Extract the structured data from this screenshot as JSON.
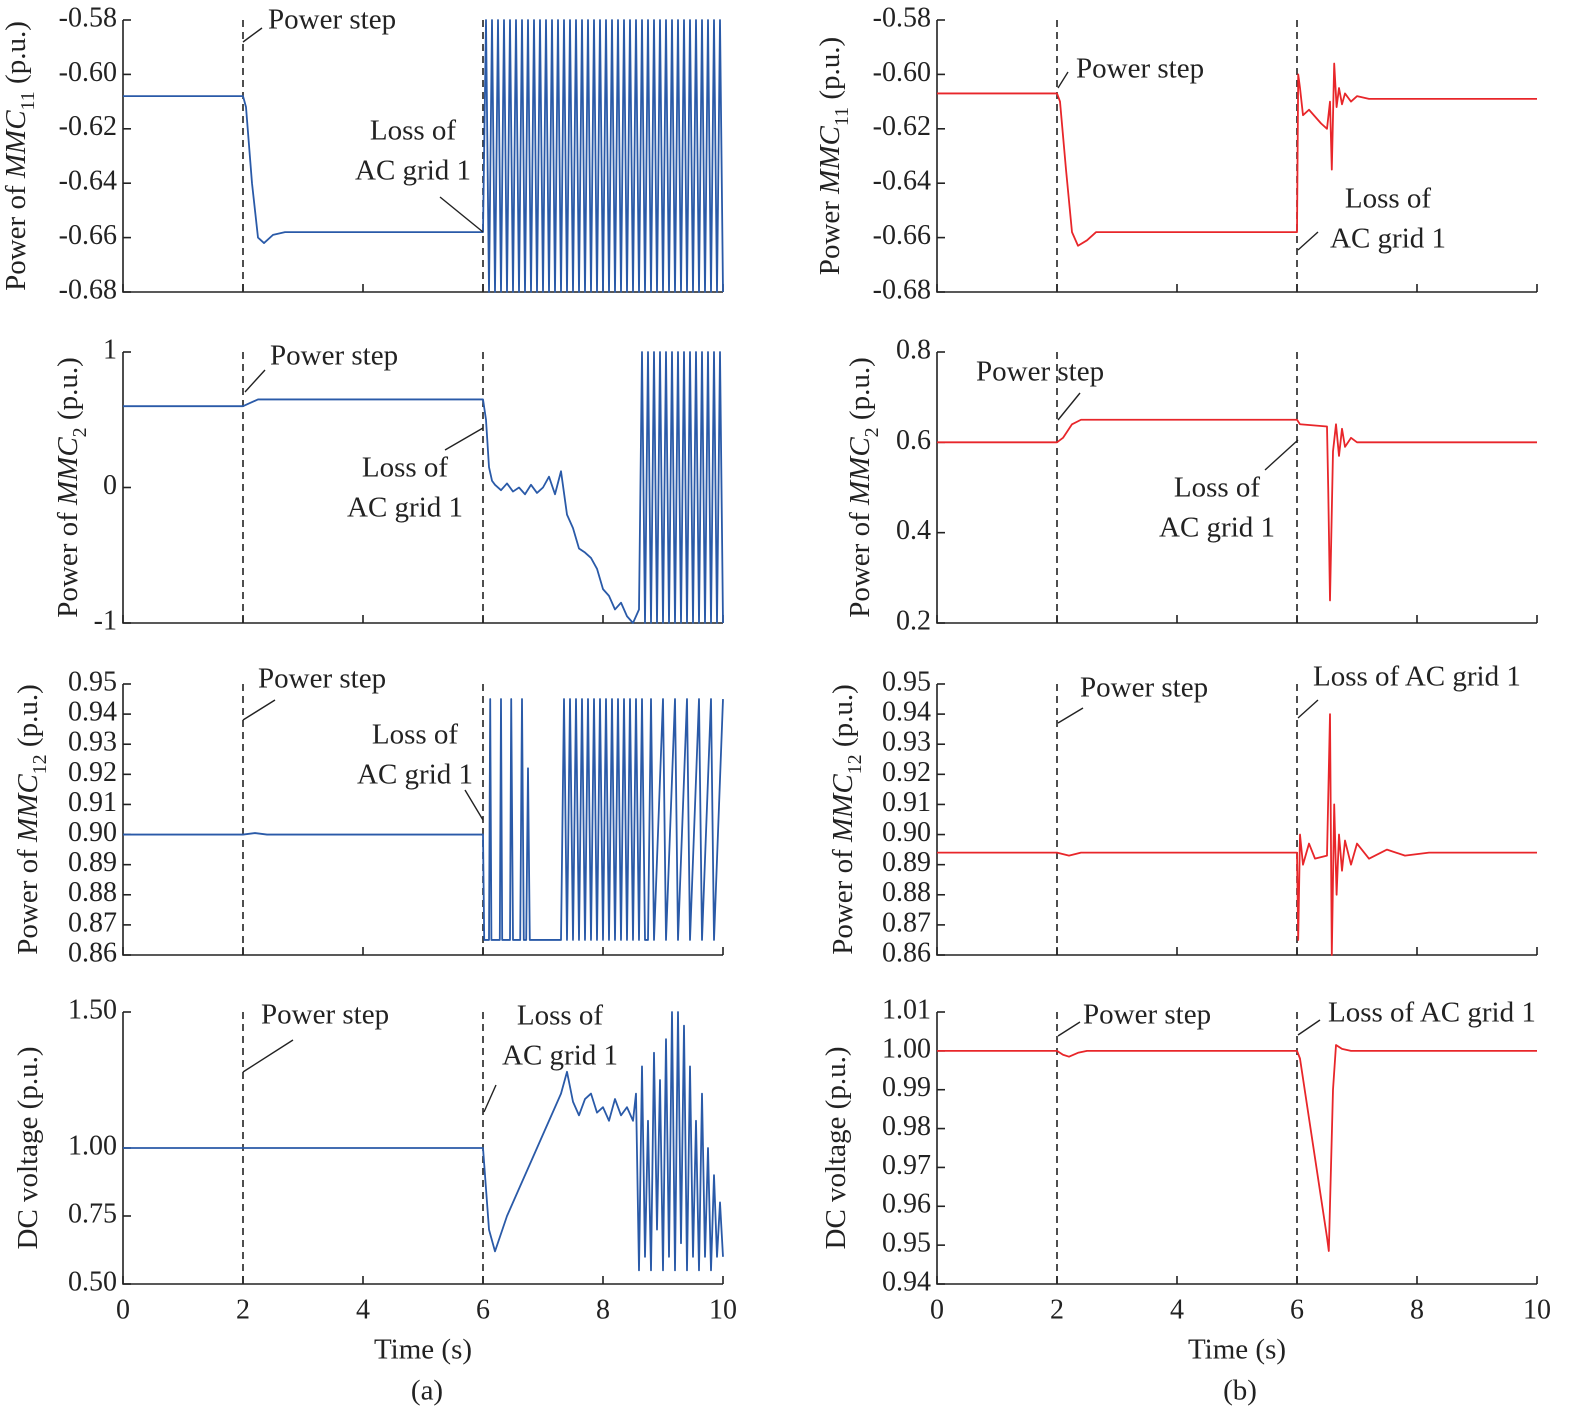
{
  "chart_data": [
    {
      "type": "line",
      "ylabel": [
        "Power of ",
        "MMC",
        "11",
        " (p.u.)"
      ],
      "color": "#2a5aa8",
      "xlim": [
        0,
        10
      ],
      "xticks": [
        0,
        2,
        4,
        6,
        8,
        10
      ],
      "xtick_labels": false,
      "ylim": [
        -0.68,
        -0.58
      ],
      "yticks": [
        -0.68,
        -0.66,
        -0.64,
        -0.62,
        {
          "value": -0.6,
          "label": "-0.60"
        },
        -0.58
      ],
      "vlines": [
        2,
        6
      ],
      "annotations": [
        [
          "Power step"
        ],
        [
          "Loss of",
          "AC grid 1"
        ]
      ],
      "x": [
        0,
        2,
        2.05,
        2.15,
        2.25,
        2.35,
        2.5,
        2.7,
        3,
        6,
        6.05,
        6.1,
        6.15,
        6.2,
        6.25,
        6.3,
        6.35,
        6.4,
        6.45,
        6.5,
        6.55,
        6.6,
        6.65,
        6.7,
        6.75,
        6.8,
        6.85,
        6.9,
        6.95,
        7,
        7.05,
        7.1,
        7.15,
        7.2,
        7.25,
        7.3,
        7.35,
        7.4,
        7.45,
        7.5,
        7.55,
        7.6,
        7.65,
        7.7,
        7.75,
        7.8,
        7.85,
        7.9,
        7.95,
        8,
        8.05,
        8.1,
        8.15,
        8.2,
        8.25,
        8.3,
        8.35,
        8.4,
        8.45,
        8.5,
        8.55,
        8.6,
        8.65,
        8.7,
        8.75,
        8.8,
        8.85,
        8.9,
        8.95,
        9,
        9.05,
        9.1,
        9.15,
        9.2,
        9.25,
        9.3,
        9.35,
        9.4,
        9.45,
        9.5,
        9.55,
        9.6,
        9.65,
        9.7,
        9.75,
        9.8,
        9.85,
        9.9,
        9.95,
        10
      ],
      "values": [
        -0.608,
        -0.608,
        -0.612,
        -0.64,
        -0.66,
        -0.662,
        -0.659,
        -0.658,
        -0.658,
        -0.658,
        -0.58,
        -0.68,
        -0.58,
        -0.68,
        -0.58,
        -0.68,
        -0.58,
        -0.68,
        -0.58,
        -0.68,
        -0.58,
        -0.68,
        -0.58,
        -0.68,
        -0.58,
        -0.68,
        -0.58,
        -0.68,
        -0.58,
        -0.68,
        -0.58,
        -0.68,
        -0.58,
        -0.68,
        -0.58,
        -0.68,
        -0.58,
        -0.68,
        -0.58,
        -0.68,
        -0.58,
        -0.68,
        -0.58,
        -0.68,
        -0.58,
        -0.68,
        -0.58,
        -0.68,
        -0.58,
        -0.68,
        -0.58,
        -0.68,
        -0.58,
        -0.68,
        -0.58,
        -0.68,
        -0.58,
        -0.68,
        -0.58,
        -0.68,
        -0.58,
        -0.68,
        -0.58,
        -0.68,
        -0.58,
        -0.68,
        -0.58,
        -0.68,
        -0.58,
        -0.68,
        -0.58,
        -0.68,
        -0.58,
        -0.68,
        -0.58,
        -0.68,
        -0.58,
        -0.68,
        -0.58,
        -0.68,
        -0.58,
        -0.68,
        -0.58,
        -0.68,
        -0.58,
        -0.68,
        -0.58,
        -0.68,
        -0.58,
        -0.68
      ]
    },
    {
      "type": "line",
      "ylabel": [
        "Power of ",
        "MMC",
        "2",
        " (p.u.)"
      ],
      "color": "#2a5aa8",
      "xlim": [
        0,
        10
      ],
      "xticks": [
        0,
        2,
        4,
        6,
        8,
        10
      ],
      "xtick_labels": false,
      "ylim": [
        -1,
        1
      ],
      "yticks": [
        -1,
        0,
        1
      ],
      "vlines": [
        2,
        6
      ],
      "annotations": [
        [
          "Power step"
        ],
        [
          "Loss of",
          "AC grid 1"
        ]
      ],
      "x": [
        0,
        2,
        2.1,
        2.25,
        2.4,
        6,
        6.05,
        6.1,
        6.15,
        6.2,
        6.3,
        6.4,
        6.5,
        6.6,
        6.7,
        6.8,
        6.9,
        7,
        7.1,
        7.2,
        7.3,
        7.4,
        7.5,
        7.6,
        7.7,
        7.8,
        7.9,
        8,
        8.1,
        8.2,
        8.3,
        8.4,
        8.5,
        8.6,
        8.65,
        8.7,
        8.75,
        8.8,
        8.85,
        8.9,
        8.95,
        9,
        9.05,
        9.1,
        9.15,
        9.2,
        9.25,
        9.3,
        9.35,
        9.4,
        9.45,
        9.5,
        9.55,
        9.6,
        9.65,
        9.7,
        9.75,
        9.8,
        9.85,
        9.9,
        9.95,
        10
      ],
      "values": [
        0.6,
        0.6,
        0.62,
        0.65,
        0.65,
        0.65,
        0.5,
        0.15,
        0.05,
        0.02,
        -0.02,
        0.03,
        -0.03,
        0,
        -0.05,
        0.02,
        -0.04,
        0,
        0.08,
        -0.05,
        0.12,
        -0.2,
        -0.3,
        -0.45,
        -0.48,
        -0.52,
        -0.6,
        -0.75,
        -0.8,
        -0.9,
        -0.85,
        -0.95,
        -1,
        -0.9,
        1,
        -1,
        1,
        -1,
        1,
        -1,
        1,
        -1,
        1,
        -1,
        1,
        -1,
        1,
        -1,
        1,
        -1,
        1,
        -1,
        1,
        -1,
        1,
        -1,
        1,
        -1,
        1,
        -1,
        1,
        -1
      ]
    },
    {
      "type": "line",
      "ylabel": [
        "Power of ",
        "MMC",
        "12",
        " (p.u.)"
      ],
      "color": "#2a5aa8",
      "xlim": [
        0,
        10
      ],
      "xticks": [
        0,
        2,
        4,
        6,
        8,
        10
      ],
      "xtick_labels": false,
      "ylim": [
        0.86,
        0.95
      ],
      "yticks": [
        0.86,
        0.87,
        0.88,
        0.89,
        {
          "value": 0.9,
          "label": "0.90"
        },
        0.91,
        0.92,
        0.93,
        0.94,
        0.95
      ],
      "vlines": [
        2,
        6
      ],
      "annotations": [
        [
          "Power step"
        ],
        [
          "Loss of",
          "AC grid 1"
        ]
      ],
      "x": [
        0,
        2,
        2.2,
        2.4,
        6,
        6.02,
        6.1,
        6.12,
        6.14,
        6.28,
        6.3,
        6.32,
        6.45,
        6.47,
        6.5,
        6.62,
        6.65,
        6.68,
        6.72,
        6.75,
        6.78,
        7.3,
        7.35,
        7.4,
        7.45,
        7.5,
        7.55,
        7.6,
        7.65,
        7.7,
        7.75,
        7.8,
        7.85,
        7.9,
        7.95,
        8,
        8.05,
        8.1,
        8.15,
        8.2,
        8.25,
        8.3,
        8.35,
        8.4,
        8.45,
        8.5,
        8.55,
        8.6,
        8.65,
        8.7,
        8.75,
        8.8,
        8.85,
        9,
        9.05,
        9.2,
        9.25,
        9.4,
        9.45,
        9.6,
        9.65,
        9.8,
        9.85,
        10
      ],
      "values": [
        0.9,
        0.9,
        0.9005,
        0.9,
        0.9,
        0.865,
        0.865,
        0.945,
        0.865,
        0.865,
        0.945,
        0.865,
        0.865,
        0.945,
        0.865,
        0.865,
        0.945,
        0.865,
        0.865,
        0.922,
        0.865,
        0.865,
        0.945,
        0.865,
        0.945,
        0.865,
        0.945,
        0.865,
        0.945,
        0.865,
        0.945,
        0.865,
        0.945,
        0.865,
        0.945,
        0.865,
        0.945,
        0.865,
        0.945,
        0.865,
        0.945,
        0.865,
        0.945,
        0.865,
        0.945,
        0.865,
        0.945,
        0.865,
        0.945,
        0.865,
        0.865,
        0.945,
        0.865,
        0.945,
        0.865,
        0.945,
        0.865,
        0.945,
        0.865,
        0.945,
        0.865,
        0.945,
        0.865,
        0.945
      ]
    },
    {
      "type": "line",
      "ylabel": [
        "DC voltage (p.u.)"
      ],
      "color": "#2a5aa8",
      "xlabel": "Time (s)",
      "xlim": [
        0,
        10
      ],
      "xticks": [
        0,
        2,
        4,
        6,
        8,
        10
      ],
      "xtick_labels": true,
      "ylim": [
        0.5,
        1.5
      ],
      "yticks": [
        {
          "value": 0.5,
          "label": "0.50"
        },
        {
          "value": 0.75,
          "label": "0.75"
        },
        {
          "value": 1,
          "label": "1.00"
        },
        {
          "value": 1.5,
          "label": "1.50"
        }
      ],
      "vlines": [
        2,
        6
      ],
      "annotations": [
        [
          "Power step"
        ],
        [
          "Loss of",
          "AC grid 1"
        ]
      ],
      "x": [
        0,
        2,
        6,
        6.05,
        6.1,
        6.2,
        6.4,
        6.6,
        6.8,
        7,
        7.2,
        7.3,
        7.4,
        7.5,
        7.6,
        7.7,
        7.8,
        7.9,
        8,
        8.1,
        8.2,
        8.3,
        8.4,
        8.5,
        8.55,
        8.6,
        8.65,
        8.7,
        8.75,
        8.8,
        8.85,
        8.9,
        8.95,
        9,
        9.05,
        9.1,
        9.15,
        9.2,
        9.25,
        9.3,
        9.35,
        9.4,
        9.45,
        9.5,
        9.55,
        9.6,
        9.65,
        9.7,
        9.75,
        9.8,
        9.85,
        9.9,
        9.95,
        10
      ],
      "values": [
        1,
        1,
        1,
        0.85,
        0.7,
        0.62,
        0.75,
        0.85,
        0.95,
        1.05,
        1.15,
        1.2,
        1.28,
        1.17,
        1.12,
        1.18,
        1.2,
        1.13,
        1.15,
        1.1,
        1.18,
        1.12,
        1.15,
        1.1,
        1.2,
        0.55,
        1.3,
        0.6,
        1.1,
        0.55,
        1.35,
        0.7,
        1.25,
        0.55,
        1.4,
        0.6,
        1.5,
        0.55,
        1.5,
        0.65,
        1.45,
        0.55,
        1.3,
        0.6,
        1.1,
        0.55,
        1.2,
        0.6,
        1,
        0.55,
        0.9,
        0.6,
        0.8,
        0.6
      ]
    },
    {
      "type": "line",
      "ylabel": [
        "Power ",
        "MMC",
        "11",
        " (p.u.)"
      ],
      "color": "#e8262a",
      "xlim": [
        0,
        10
      ],
      "xticks": [
        0,
        2,
        4,
        6,
        8,
        10
      ],
      "xtick_labels": false,
      "ylim": [
        -0.68,
        -0.58
      ],
      "yticks": [
        -0.68,
        -0.66,
        -0.64,
        -0.62,
        {
          "value": -0.6,
          "label": "-0.60"
        },
        -0.58
      ],
      "vlines": [
        2,
        6
      ],
      "annotations": [
        [
          "Power step"
        ],
        [
          "Loss of",
          "AC grid 1"
        ]
      ],
      "x": [
        0,
        2,
        2.05,
        2.15,
        2.25,
        2.35,
        2.5,
        2.65,
        3,
        6,
        6.02,
        6.05,
        6.1,
        6.2,
        6.4,
        6.5,
        6.55,
        6.58,
        6.62,
        6.66,
        6.7,
        6.75,
        6.8,
        6.9,
        7,
        7.2,
        10
      ],
      "values": [
        -0.607,
        -0.607,
        -0.61,
        -0.635,
        -0.658,
        -0.663,
        -0.661,
        -0.658,
        -0.658,
        -0.658,
        -0.6,
        -0.605,
        -0.615,
        -0.613,
        -0.618,
        -0.62,
        -0.61,
        -0.635,
        -0.596,
        -0.612,
        -0.605,
        -0.611,
        -0.607,
        -0.61,
        -0.608,
        -0.609,
        -0.609
      ]
    },
    {
      "type": "line",
      "ylabel": [
        "Power of ",
        "MMC",
        "2",
        " (p.u.)"
      ],
      "color": "#e8262a",
      "xlim": [
        0,
        10
      ],
      "xticks": [
        0,
        2,
        4,
        6,
        8,
        10
      ],
      "xtick_labels": false,
      "ylim": [
        0.2,
        0.8
      ],
      "yticks": [
        0.2,
        0.4,
        0.6,
        0.8
      ],
      "vlines": [
        2,
        6
      ],
      "annotations": [
        [
          "Power step"
        ],
        [
          "Loss of",
          "AC grid 1"
        ]
      ],
      "x": [
        0,
        2,
        2.1,
        2.25,
        2.4,
        6,
        6.05,
        6.5,
        6.52,
        6.55,
        6.6,
        6.65,
        6.7,
        6.75,
        6.8,
        6.9,
        7,
        10
      ],
      "values": [
        0.6,
        0.6,
        0.61,
        0.64,
        0.65,
        0.65,
        0.64,
        0.635,
        0.5,
        0.25,
        0.58,
        0.64,
        0.57,
        0.63,
        0.59,
        0.61,
        0.6,
        0.6
      ]
    },
    {
      "type": "line",
      "ylabel": [
        "Power of ",
        "MMC",
        "12",
        " (p.u.)"
      ],
      "color": "#e8262a",
      "xlim": [
        0,
        10
      ],
      "xticks": [
        0,
        2,
        4,
        6,
        8,
        10
      ],
      "xtick_labels": false,
      "ylim": [
        0.86,
        0.95
      ],
      "yticks": [
        0.86,
        0.87,
        0.88,
        0.89,
        {
          "value": 0.9,
          "label": "0.90"
        },
        0.91,
        0.92,
        0.93,
        0.94,
        0.95
      ],
      "vlines": [
        2,
        6
      ],
      "annotations": [
        [
          "Power step"
        ],
        [
          "Loss of AC grid 1"
        ]
      ],
      "x": [
        0,
        2,
        2.2,
        2.4,
        6,
        6.02,
        6.05,
        6.1,
        6.2,
        6.3,
        6.5,
        6.55,
        6.58,
        6.62,
        6.66,
        6.7,
        6.75,
        6.8,
        6.9,
        7,
        7.2,
        7.5,
        7.8,
        8.2,
        10
      ],
      "values": [
        0.894,
        0.894,
        0.893,
        0.894,
        0.894,
        0.865,
        0.9,
        0.89,
        0.897,
        0.892,
        0.893,
        0.94,
        0.86,
        0.91,
        0.88,
        0.9,
        0.888,
        0.898,
        0.89,
        0.897,
        0.892,
        0.895,
        0.893,
        0.894,
        0.894
      ]
    },
    {
      "type": "line",
      "ylabel": [
        "DC voltage (p.u.)"
      ],
      "color": "#e8262a",
      "xlabel": "Time (s)",
      "xlim": [
        0,
        10
      ],
      "xticks": [
        0,
        2,
        4,
        6,
        8,
        10
      ],
      "xtick_labels": true,
      "ylim": [
        0.94,
        1.01
      ],
      "yticks": [
        0.94,
        0.95,
        0.96,
        0.97,
        0.98,
        0.99,
        {
          "value": 1,
          "label": "1.00"
        },
        1.01
      ],
      "vlines": [
        2,
        6
      ],
      "annotations": [
        [
          "Power step"
        ],
        [
          "Loss of AC grid 1"
        ]
      ],
      "x": [
        0,
        2,
        2.1,
        2.2,
        2.35,
        2.5,
        6,
        6.05,
        6.5,
        6.53,
        6.6,
        6.65,
        6.75,
        6.9,
        10
      ],
      "values": [
        1,
        1,
        0.999,
        0.9985,
        0.9995,
        1,
        1,
        0.998,
        0.952,
        0.9485,
        0.99,
        1.0015,
        1.0005,
        1,
        1
      ]
    }
  ],
  "captions": [
    "(a)",
    "(b)"
  ]
}
